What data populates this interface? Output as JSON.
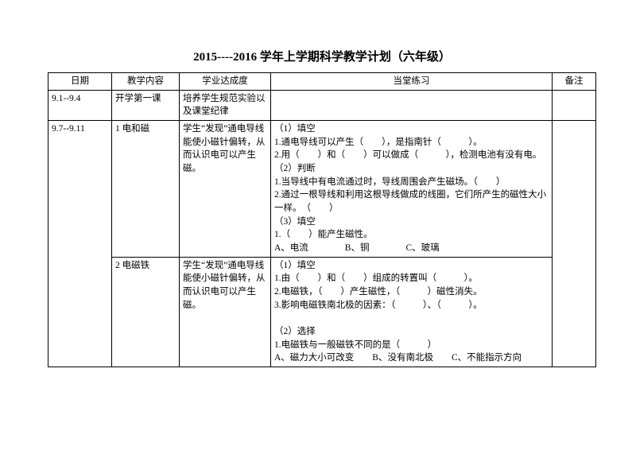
{
  "title": "2015----2016 学年上学期科学教学计划（六年级）",
  "headers": {
    "date": "日期",
    "topic": "教学内容",
    "achievement": "学业达成度",
    "practice": "当堂练习",
    "note": "备注"
  },
  "rows": [
    {
      "date": "9.1--9.4",
      "topic": "开学第一课",
      "achievement": "培养学生规范实验以及课堂纪律",
      "practice": "",
      "note": ""
    },
    {
      "date": "9.7--9.11",
      "topic": "1 电和磁",
      "achievement": "学生“发现”通电导线能使小磁针偏转，从而认识电可以产生磁。",
      "practice_lines": [
        "（1）填空",
        "1.通电导线可以产生（　　），是指南针（　　　）。",
        "2.用（　　）和（　　）可以做成（　　　），检测电池有没有电。",
        "（2）判断",
        "1.当导线中有电流通过时，导线周围会产生磁场。（　　）",
        "2.通过一根导线和利用这根导线做成的线圈，它们所产生的磁性大小一样。　（　　）",
        "（3）填空",
        "1.（　　）能产生磁性。",
        "A、电流　　　　B、铜　　　　C、玻璃"
      ],
      "note": ""
    },
    {
      "date": "",
      "topic": "2 电磁铁",
      "achievement": "学生“发现”通电导线能使小磁针偏转，从而认识电可以产生磁。",
      "practice_lines": [
        "（1）填空",
        "1.由（　　）和（　　）组成的转置叫（　　　）。",
        "2.电磁铁，（　　）产生磁性，（　　　）磁性消失。",
        "3.影响电磁铁南北极的因素：（　　　）、（　　　）。",
        "",
        "（2）选择",
        "1.电磁铁与一般磁铁不同的是（　　　）",
        "A、磁力大小可改变　　B、没有南北极　　C、不能指示方向"
      ],
      "note": ""
    }
  ]
}
